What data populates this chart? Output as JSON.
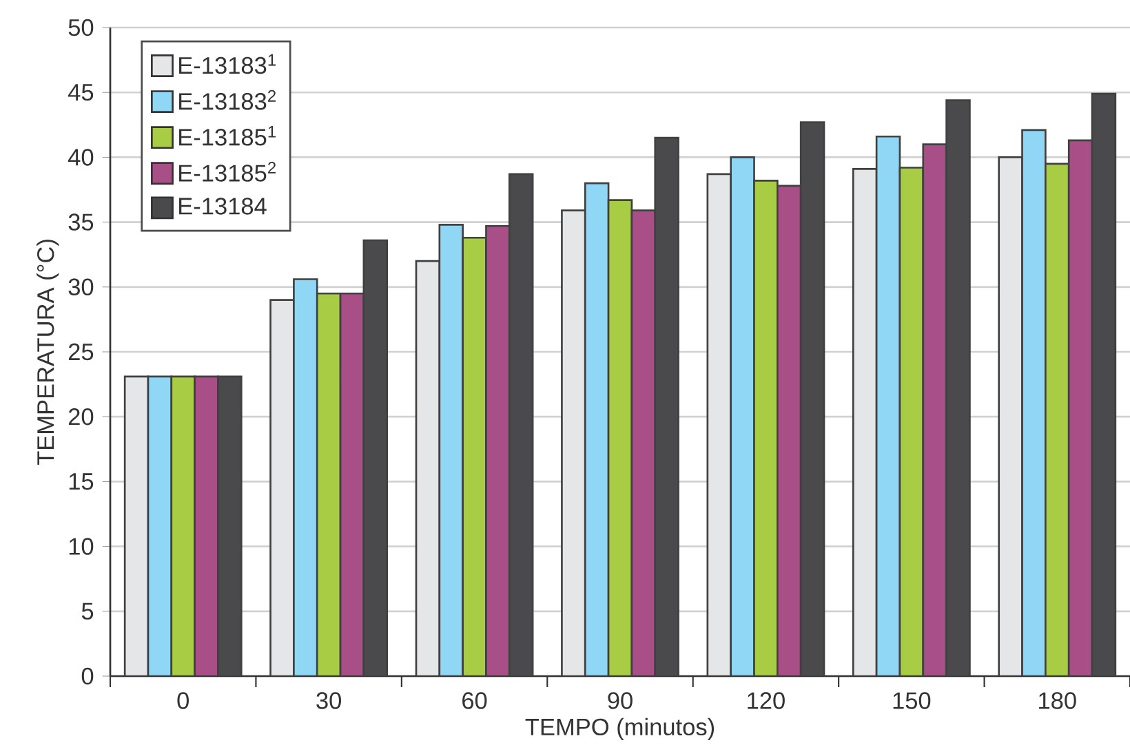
{
  "chart_data": {
    "type": "bar",
    "xlabel": "TEMPO (minutos)",
    "ylabel": "TEMPERATURA (°C)",
    "categories": [
      "0",
      "30",
      "60",
      "90",
      "120",
      "150",
      "180"
    ],
    "series": [
      {
        "name": "E-13183$^{1}$",
        "color": "#e5e6e8",
        "values": [
          23.1,
          29.0,
          32.0,
          35.9,
          38.7,
          39.1,
          40.0
        ]
      },
      {
        "name": "E-13183$^{2}$",
        "color": "#8fd7f5",
        "values": [
          23.1,
          30.6,
          34.8,
          38.0,
          40.0,
          41.6,
          42.1
        ]
      },
      {
        "name": "E-13185$^{1}$",
        "color": "#a8cd45",
        "values": [
          23.1,
          29.5,
          33.8,
          36.7,
          38.2,
          39.2,
          39.5
        ]
      },
      {
        "name": "E-13185$^{2}$",
        "color": "#a74f86",
        "values": [
          23.1,
          29.5,
          34.7,
          35.9,
          37.8,
          41.0,
          41.3
        ]
      },
      {
        "name": "E-13184",
        "color": "#4a4a4c",
        "values": [
          23.1,
          33.6,
          38.7,
          41.5,
          42.7,
          44.4,
          44.9
        ]
      }
    ],
    "ylim": [
      0,
      50
    ],
    "yticks": [
      0,
      5,
      10,
      15,
      20,
      25,
      30,
      35,
      40,
      45,
      50
    ],
    "grid": "y",
    "legend": "top left"
  }
}
